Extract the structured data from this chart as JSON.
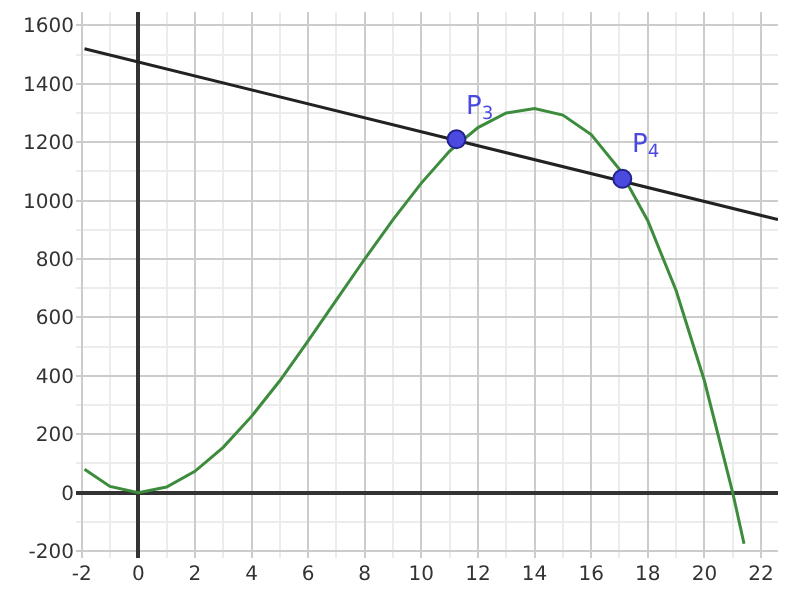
{
  "chart_data": {
    "type": "line",
    "xlim": [
      -2.2,
      22.6
    ],
    "ylim": [
      -224,
      1646
    ],
    "xticks": [
      -2,
      0,
      2,
      4,
      6,
      8,
      10,
      12,
      14,
      16,
      18,
      20,
      22
    ],
    "yticks": [
      -200,
      0,
      200,
      400,
      600,
      800,
      1000,
      1200,
      1400,
      1600
    ],
    "grid": true,
    "series": [
      {
        "color": "#3d8b3d",
        "x": [
          -1.9,
          -1,
          0,
          1,
          2,
          3,
          4,
          5,
          6,
          7,
          8,
          9,
          10,
          11,
          12,
          13,
          14,
          15,
          16,
          17,
          18,
          19,
          20,
          21,
          21.4
        ],
        "values": [
          80,
          21,
          0,
          19,
          73,
          155,
          261,
          383,
          520,
          660,
          800,
          935,
          1060,
          1170,
          1250,
          1300,
          1315,
          1293,
          1226,
          1107,
          931,
          692,
          383,
          0,
          -175
        ]
      },
      {
        "type": "line",
        "color": "#222222",
        "x": [
          -1.9,
          22.6
        ],
        "values": [
          1520,
          935
        ]
      },
      {
        "type": "scatter",
        "marker": "circle",
        "color": "#4a4ae0",
        "x": [
          11.24,
          17.1
        ],
        "values": [
          1210,
          1075
        ]
      }
    ],
    "annotations": [
      {
        "text": "P$_{3}$",
        "x": 11.24,
        "y": 1210
      },
      {
        "text": "P$_{4}$",
        "x": 17.1,
        "y": 1075
      }
    ]
  }
}
